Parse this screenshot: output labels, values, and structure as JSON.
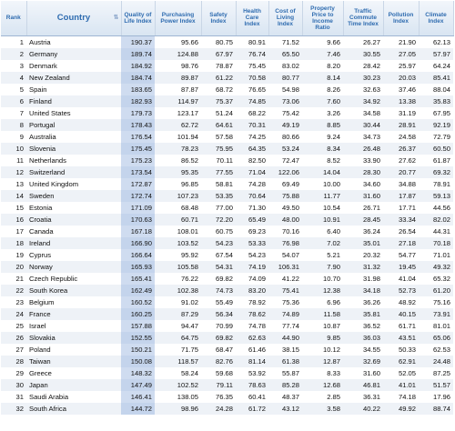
{
  "headers": [
    {
      "key": "rank",
      "label": "Rank"
    },
    {
      "key": "country",
      "label": "Country"
    },
    {
      "key": "qol",
      "label": "Quality of Life Index"
    },
    {
      "key": "ppi",
      "label": "Purchasing Power Index"
    },
    {
      "key": "safety",
      "label": "Safety Index"
    },
    {
      "key": "health",
      "label": "Health Care Index"
    },
    {
      "key": "col",
      "label": "Cost of Living Index"
    },
    {
      "key": "property",
      "label": "Property Price to Income Ratio"
    },
    {
      "key": "traffic",
      "label": "Traffic Commute Time Index"
    },
    {
      "key": "pollution",
      "label": "Pollution Index"
    },
    {
      "key": "climate",
      "label": "Climate Index"
    }
  ],
  "sort_icon": "sort-arrows-icon",
  "highlight_color": "#cfdcf0",
  "rows": [
    [
      "1",
      "Austria",
      "190.37",
      "95.66",
      "80.75",
      "80.91",
      "71.52",
      "9.66",
      "26.27",
      "21.90",
      "62.13"
    ],
    [
      "2",
      "Germany",
      "189.74",
      "124.88",
      "67.97",
      "76.74",
      "65.50",
      "7.46",
      "30.55",
      "27.05",
      "57.97"
    ],
    [
      "3",
      "Denmark",
      "184.92",
      "98.76",
      "78.87",
      "75.45",
      "83.02",
      "8.20",
      "28.42",
      "25.97",
      "64.24"
    ],
    [
      "4",
      "New Zealand",
      "184.74",
      "89.87",
      "61.22",
      "70.58",
      "80.77",
      "8.14",
      "30.23",
      "20.03",
      "85.41"
    ],
    [
      "5",
      "Spain",
      "183.65",
      "87.87",
      "68.72",
      "76.65",
      "54.98",
      "8.26",
      "32.63",
      "37.46",
      "88.04"
    ],
    [
      "6",
      "Finland",
      "182.93",
      "114.97",
      "75.37",
      "74.85",
      "73.06",
      "7.60",
      "34.92",
      "13.38",
      "35.83"
    ],
    [
      "7",
      "United States",
      "179.73",
      "123.17",
      "51.24",
      "68.22",
      "75.42",
      "3.26",
      "34.58",
      "31.19",
      "67.95"
    ],
    [
      "8",
      "Portugal",
      "178.43",
      "62.72",
      "64.61",
      "70.31",
      "49.19",
      "8.85",
      "30.44",
      "28.91",
      "92.19"
    ],
    [
      "9",
      "Australia",
      "176.54",
      "101.94",
      "57.58",
      "74.25",
      "80.66",
      "9.24",
      "34.73",
      "24.58",
      "72.79"
    ],
    [
      "10",
      "Slovenia",
      "175.45",
      "78.23",
      "75.95",
      "64.35",
      "53.24",
      "8.34",
      "26.48",
      "26.37",
      "60.50"
    ],
    [
      "11",
      "Netherlands",
      "175.23",
      "86.52",
      "70.11",
      "82.50",
      "72.47",
      "8.52",
      "33.90",
      "27.62",
      "61.87"
    ],
    [
      "12",
      "Switzerland",
      "173.54",
      "95.35",
      "77.55",
      "71.04",
      "122.06",
      "14.04",
      "28.30",
      "20.77",
      "69.32"
    ],
    [
      "13",
      "United Kingdom",
      "172.87",
      "96.85",
      "58.81",
      "74.28",
      "69.49",
      "10.00",
      "34.60",
      "34.88",
      "78.91"
    ],
    [
      "14",
      "Sweden",
      "172.74",
      "107.23",
      "53.35",
      "70.64",
      "75.88",
      "11.77",
      "31.60",
      "17.87",
      "59.13"
    ],
    [
      "15",
      "Estonia",
      "171.09",
      "68.48",
      "77.00",
      "71.30",
      "49.50",
      "10.54",
      "26.71",
      "17.71",
      "44.56"
    ],
    [
      "16",
      "Croatia",
      "170.63",
      "60.71",
      "72.20",
      "65.49",
      "48.00",
      "10.91",
      "28.45",
      "33.34",
      "82.02"
    ],
    [
      "17",
      "Canada",
      "167.18",
      "108.01",
      "60.75",
      "69.23",
      "70.16",
      "6.40",
      "36.24",
      "26.54",
      "44.31"
    ],
    [
      "18",
      "Ireland",
      "166.90",
      "103.52",
      "54.23",
      "53.33",
      "76.98",
      "7.02",
      "35.01",
      "27.18",
      "70.18"
    ],
    [
      "19",
      "Cyprus",
      "166.64",
      "95.92",
      "67.54",
      "54.23",
      "54.07",
      "5.21",
      "20.32",
      "54.77",
      "71.01"
    ],
    [
      "20",
      "Norway",
      "165.93",
      "105.58",
      "54.31",
      "74.19",
      "106.31",
      "7.90",
      "31.32",
      "19.45",
      "49.32"
    ],
    [
      "21",
      "Czech Republic",
      "165.41",
      "76.22",
      "69.82",
      "74.09",
      "41.22",
      "10.70",
      "31.98",
      "41.04",
      "65.32"
    ],
    [
      "22",
      "South Korea",
      "162.49",
      "102.38",
      "74.73",
      "83.20",
      "75.41",
      "12.38",
      "34.18",
      "52.73",
      "61.20"
    ],
    [
      "23",
      "Belgium",
      "160.52",
      "91.02",
      "55.49",
      "78.92",
      "75.36",
      "6.96",
      "36.26",
      "48.92",
      "75.16"
    ],
    [
      "24",
      "France",
      "160.25",
      "87.29",
      "56.34",
      "78.62",
      "74.89",
      "11.58",
      "35.81",
      "40.15",
      "73.91"
    ],
    [
      "25",
      "Israel",
      "157.88",
      "94.47",
      "70.99",
      "74.78",
      "77.74",
      "10.87",
      "36.52",
      "61.71",
      "81.01"
    ],
    [
      "26",
      "Slovakia",
      "152.55",
      "64.75",
      "69.82",
      "62.63",
      "44.90",
      "9.85",
      "36.03",
      "43.51",
      "65.06"
    ],
    [
      "27",
      "Poland",
      "150.21",
      "71.75",
      "68.47",
      "61.46",
      "38.15",
      "10.12",
      "34.55",
      "50.33",
      "62.53"
    ],
    [
      "28",
      "Taiwan",
      "150.08",
      "118.57",
      "82.76",
      "81.14",
      "61.38",
      "12.87",
      "32.69",
      "62.91",
      "24.48"
    ],
    [
      "29",
      "Greece",
      "148.32",
      "58.24",
      "59.68",
      "53.92",
      "55.87",
      "8.33",
      "31.60",
      "52.05",
      "87.25"
    ],
    [
      "30",
      "Japan",
      "147.49",
      "102.52",
      "79.11",
      "78.63",
      "85.28",
      "12.68",
      "46.81",
      "41.01",
      "51.57"
    ],
    [
      "31",
      "Saudi Arabia",
      "146.41",
      "138.05",
      "76.35",
      "60.41",
      "48.37",
      "2.85",
      "36.31",
      "74.18",
      "17.96"
    ],
    [
      "32",
      "South Africa",
      "144.72",
      "98.96",
      "24.28",
      "61.72",
      "43.12",
      "3.58",
      "40.22",
      "49.92",
      "88.74"
    ]
  ]
}
